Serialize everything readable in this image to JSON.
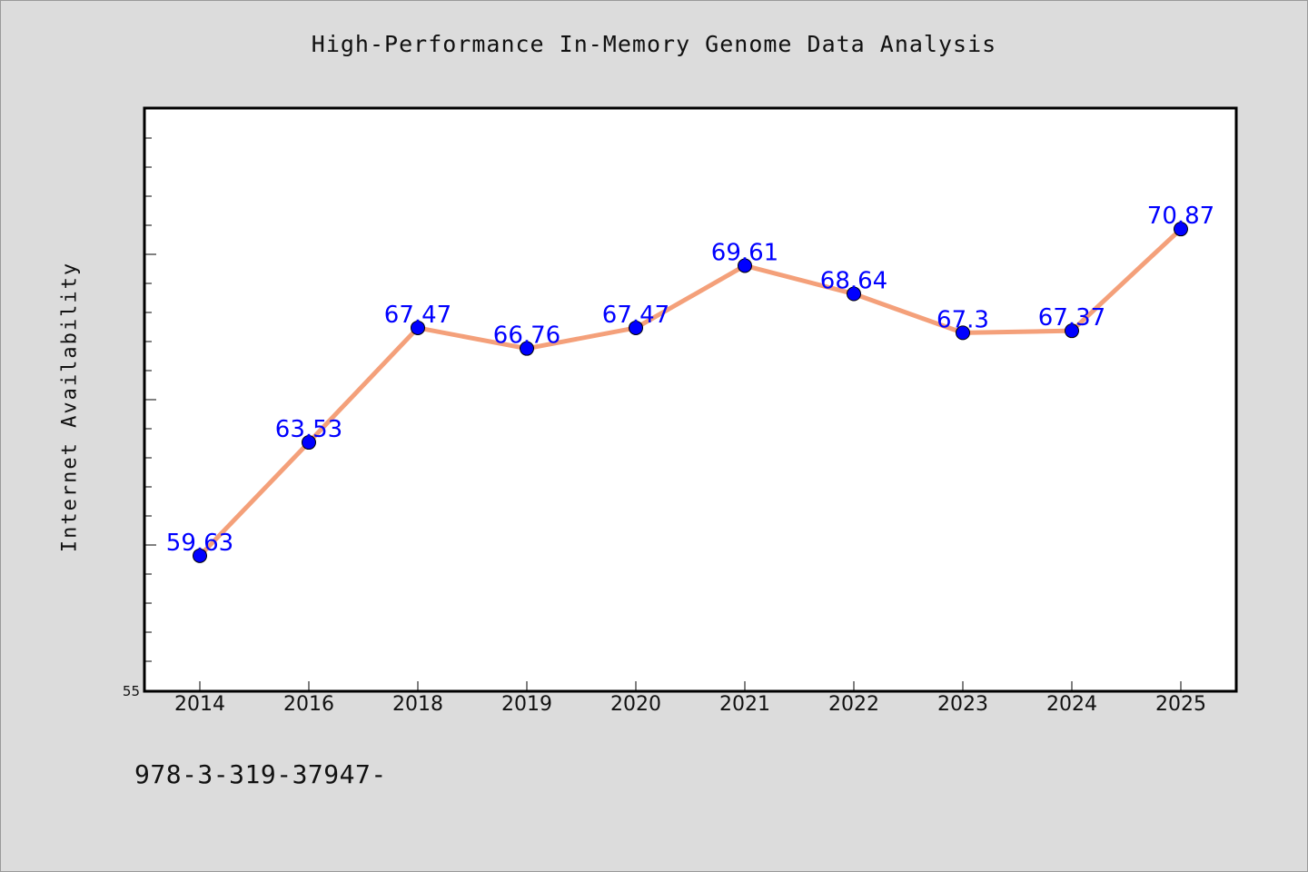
{
  "chart_data": {
    "type": "line",
    "title": "High-Performance In-Memory Genome Data Analysis",
    "xlabel": "",
    "ylabel": "Internet Availability",
    "categories": [
      "2014",
      "2016",
      "2018",
      "2019",
      "2020",
      "2021",
      "2022",
      "2023",
      "2024",
      "2025"
    ],
    "series": [
      {
        "values": [
          59.63,
          63.53,
          67.47,
          66.76,
          67.47,
          69.61,
          68.64,
          67.3,
          67.37,
          70.87
        ],
        "data_labels": [
          "59.63",
          "63.53",
          "67.47",
          "66.76",
          "67.47",
          "69.61",
          "68.64",
          "67.3",
          "67.37",
          "70.87"
        ],
        "line_color": "#f4a07a",
        "marker_color": "#0000ff"
      }
    ],
    "ylim": [
      55,
      75
    ],
    "y_tick_labels": [
      "55"
    ],
    "grid": false,
    "legend": "none",
    "background": "#dcdcdc",
    "plot_background": "#ffffff"
  },
  "footer_text": "978-3-319-37947-"
}
